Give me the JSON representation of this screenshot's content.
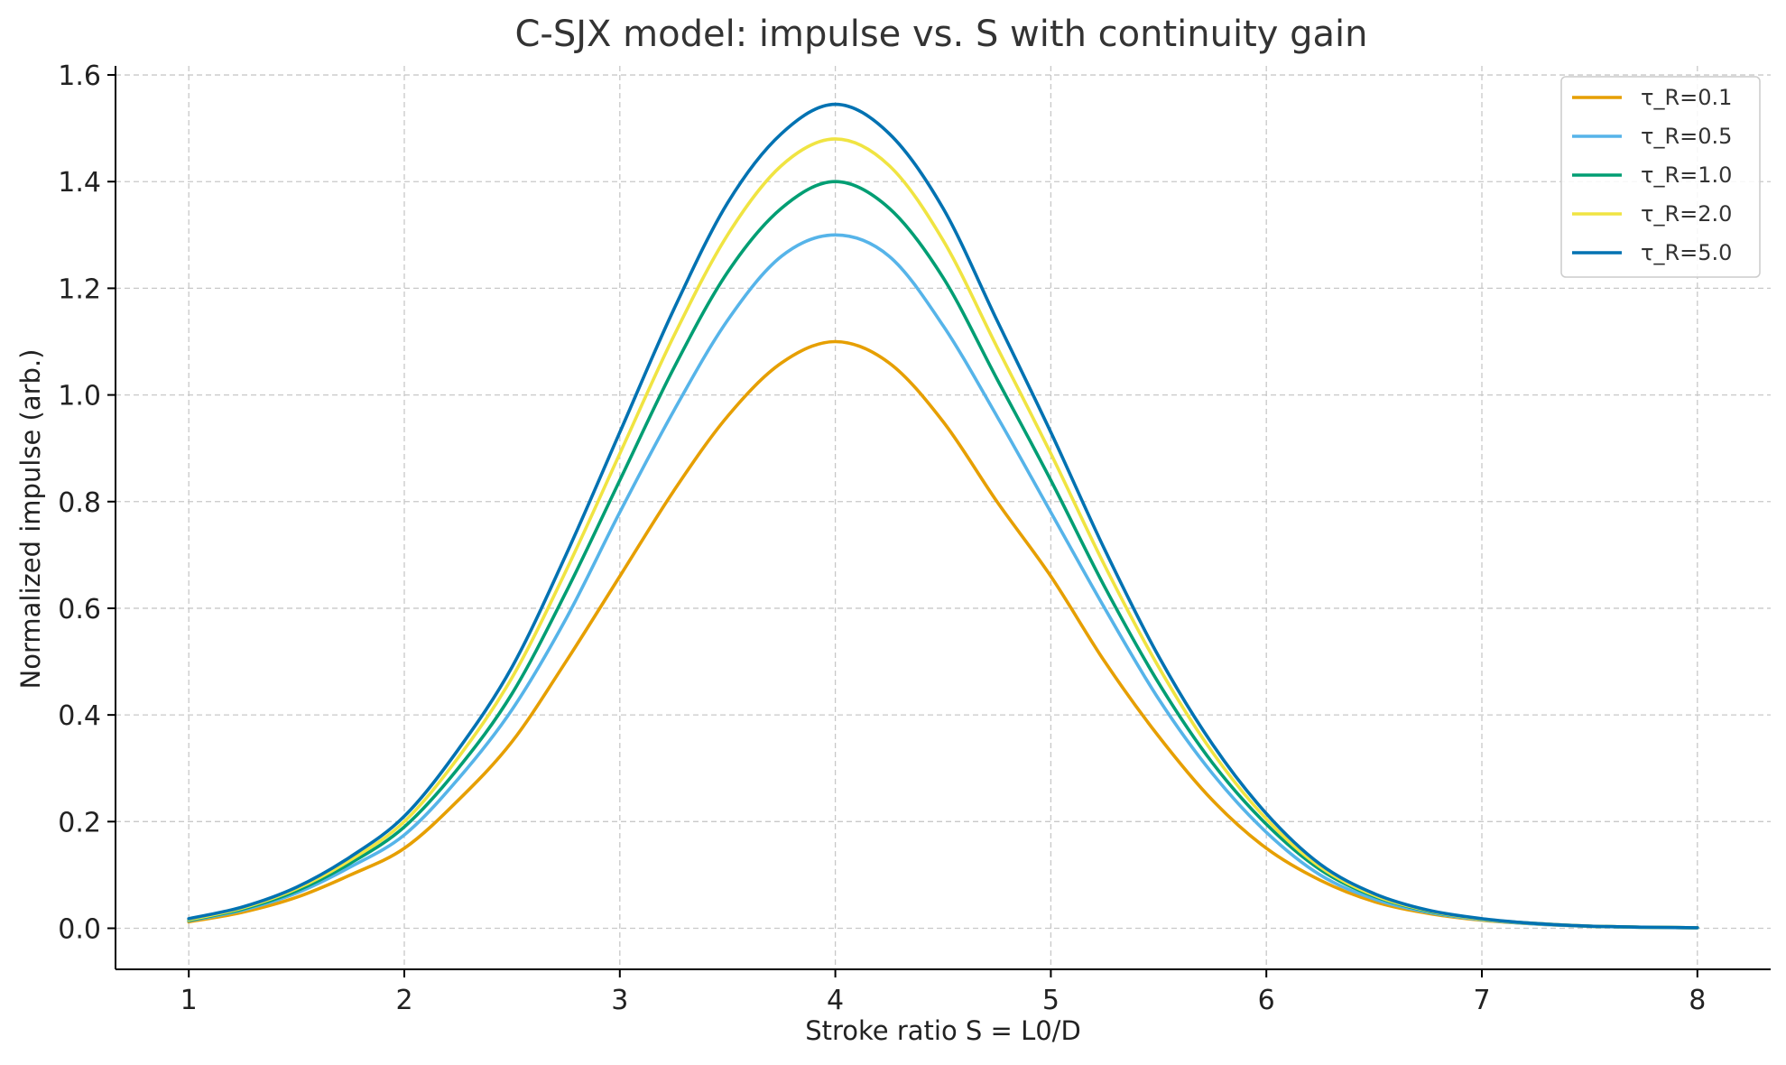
{
  "chart_data": {
    "type": "line",
    "title": "C-SJX model: impulse vs. S with continuity gain",
    "xlabel": "Stroke ratio S = L0/D",
    "ylabel": "Normalized impulse (arb.)",
    "xlim": [
      0.66,
      8.34
    ],
    "ylim": [
      -0.077,
      1.617
    ],
    "xticks": [
      1,
      2,
      3,
      4,
      5,
      6,
      7,
      8
    ],
    "yticks": [
      0.0,
      0.2,
      0.4,
      0.6,
      0.8,
      1.0,
      1.2,
      1.4,
      1.6
    ],
    "xtick_labels": [
      "1",
      "2",
      "3",
      "4",
      "5",
      "6",
      "7",
      "8"
    ],
    "ytick_labels": [
      "0.0",
      "0.2",
      "0.4",
      "0.6",
      "0.8",
      "1.0",
      "1.2",
      "1.4",
      "1.6"
    ],
    "grid": true,
    "legend_position": "top-right",
    "x": [
      1.0,
      1.25,
      1.5,
      1.75,
      2.0,
      2.25,
      2.5,
      2.75,
      3.0,
      3.25,
      3.5,
      3.75,
      4.0,
      4.25,
      4.5,
      4.75,
      5.0,
      5.25,
      5.5,
      5.75,
      6.0,
      6.25,
      6.5,
      6.75,
      7.0,
      7.25,
      7.5,
      7.75,
      8.0
    ],
    "series": [
      {
        "name": "τ_R=0.1",
        "color": "#E69F00",
        "values": [
          0.012,
          0.03,
          0.058,
          0.1,
          0.15,
          0.24,
          0.35,
          0.5,
          0.66,
          0.82,
          0.96,
          1.06,
          1.1,
          1.06,
          0.95,
          0.8,
          0.66,
          0.5,
          0.36,
          0.24,
          0.15,
          0.09,
          0.05,
          0.028,
          0.015,
          0.008,
          0.004,
          0.002,
          0.001
        ]
      },
      {
        "name": "τ_R=0.5",
        "color": "#56B4E9",
        "values": [
          0.014,
          0.034,
          0.066,
          0.115,
          0.175,
          0.28,
          0.41,
          0.58,
          0.78,
          0.97,
          1.14,
          1.26,
          1.3,
          1.26,
          1.13,
          0.96,
          0.78,
          0.6,
          0.43,
          0.29,
          0.18,
          0.1,
          0.055,
          0.03,
          0.016,
          0.008,
          0.004,
          0.002,
          0.001
        ]
      },
      {
        "name": "τ_R=1.0",
        "color": "#009E73",
        "values": [
          0.015,
          0.036,
          0.07,
          0.122,
          0.19,
          0.3,
          0.44,
          0.63,
          0.84,
          1.05,
          1.23,
          1.35,
          1.4,
          1.35,
          1.22,
          1.03,
          0.84,
          0.64,
          0.46,
          0.31,
          0.195,
          0.11,
          0.06,
          0.032,
          0.017,
          0.009,
          0.004,
          0.002,
          0.001
        ]
      },
      {
        "name": "τ_R=2.0",
        "color": "#F0E442",
        "values": [
          0.016,
          0.038,
          0.074,
          0.128,
          0.2,
          0.32,
          0.47,
          0.67,
          0.89,
          1.11,
          1.3,
          1.43,
          1.48,
          1.43,
          1.29,
          1.09,
          0.89,
          0.68,
          0.49,
          0.33,
          0.205,
          0.115,
          0.062,
          0.033,
          0.017,
          0.009,
          0.004,
          0.002,
          0.001
        ]
      },
      {
        "name": "τ_R=5.0",
        "color": "#0072B2",
        "values": [
          0.018,
          0.04,
          0.077,
          0.134,
          0.21,
          0.335,
          0.49,
          0.7,
          0.93,
          1.16,
          1.36,
          1.49,
          1.545,
          1.49,
          1.35,
          1.14,
          0.93,
          0.71,
          0.51,
          0.345,
          0.215,
          0.12,
          0.065,
          0.034,
          0.018,
          0.009,
          0.004,
          0.002,
          0.001
        ]
      }
    ]
  }
}
